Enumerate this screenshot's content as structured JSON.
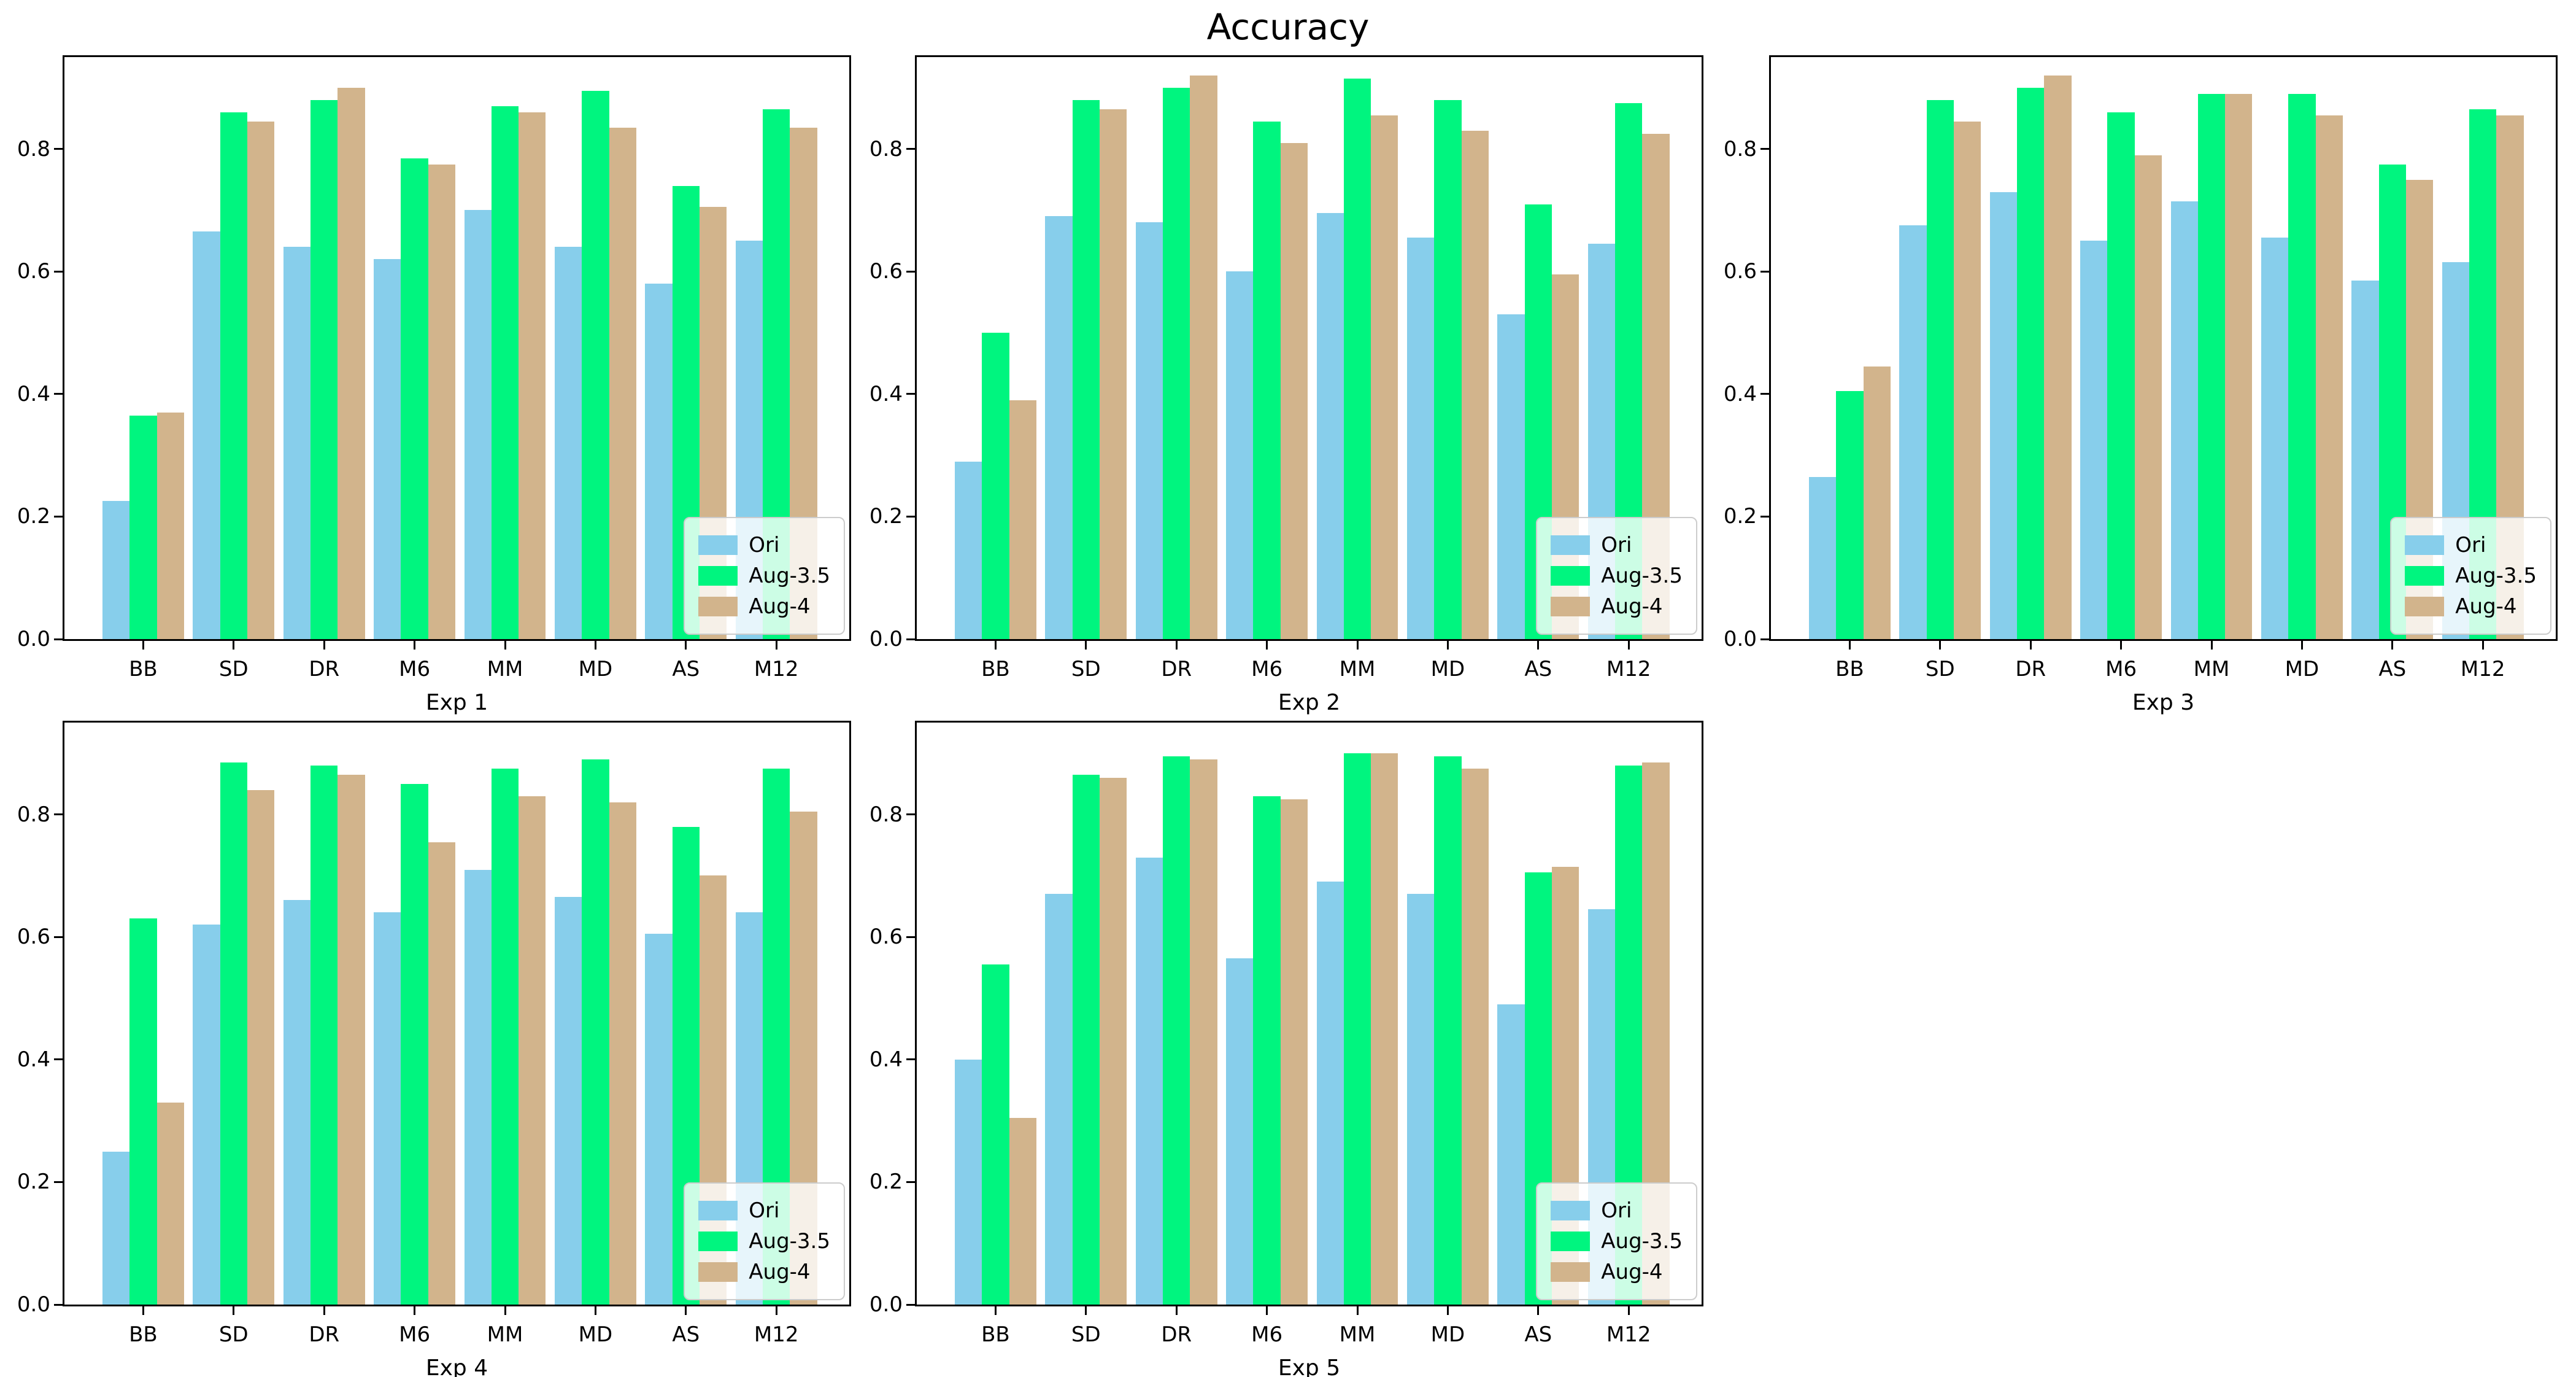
{
  "chart_data": {
    "type": "bar",
    "title": "Accuracy",
    "categories": [
      "BB",
      "SD",
      "DR",
      "M6",
      "MM",
      "MD",
      "AS",
      "M12"
    ],
    "ylim": [
      0,
      0.95
    ],
    "yticks": {
      "values": [
        0.0,
        0.2,
        0.4,
        0.6,
        0.8
      ],
      "labels": [
        "0.0",
        "0.2",
        "0.4",
        "0.6",
        "0.8"
      ]
    },
    "grid": false,
    "legend_position": "lower right",
    "colors": {
      "ori": "#87CEEB",
      "aug35": "#00F57F",
      "aug4": "#D2B48C"
    },
    "subplots": [
      {
        "xlabel": "Exp 1",
        "series": [
          {
            "name": "Ori",
            "color": "#87CEEB",
            "values": [
              0.225,
              0.665,
              0.64,
              0.62,
              0.7,
              0.64,
              0.58,
              0.65
            ]
          },
          {
            "name": "Aug-3.5",
            "color": "#00F57F",
            "values": [
              0.365,
              0.86,
              0.88,
              0.785,
              0.87,
              0.895,
              0.74,
              0.865
            ]
          },
          {
            "name": "Aug-4",
            "color": "#D2B48C",
            "values": [
              0.37,
              0.845,
              0.9,
              0.775,
              0.86,
              0.835,
              0.705,
              0.835
            ]
          }
        ]
      },
      {
        "xlabel": "Exp 2",
        "series": [
          {
            "name": "Ori",
            "color": "#87CEEB",
            "values": [
              0.29,
              0.69,
              0.68,
              0.6,
              0.695,
              0.655,
              0.53,
              0.645
            ]
          },
          {
            "name": "Aug-3.5",
            "color": "#00F57F",
            "values": [
              0.5,
              0.88,
              0.9,
              0.845,
              0.915,
              0.88,
              0.71,
              0.875
            ]
          },
          {
            "name": "Aug-4",
            "color": "#D2B48C",
            "values": [
              0.39,
              0.865,
              0.92,
              0.81,
              0.855,
              0.83,
              0.595,
              0.825
            ]
          }
        ]
      },
      {
        "xlabel": "Exp 3",
        "series": [
          {
            "name": "Ori",
            "color": "#87CEEB",
            "values": [
              0.265,
              0.675,
              0.73,
              0.65,
              0.715,
              0.655,
              0.585,
              0.615
            ]
          },
          {
            "name": "Aug-3.5",
            "color": "#00F57F",
            "values": [
              0.405,
              0.88,
              0.9,
              0.86,
              0.89,
              0.89,
              0.775,
              0.865
            ]
          },
          {
            "name": "Aug-4",
            "color": "#D2B48C",
            "values": [
              0.445,
              0.845,
              0.92,
              0.79,
              0.89,
              0.855,
              0.75,
              0.855
            ]
          }
        ]
      },
      {
        "xlabel": "Exp 4",
        "series": [
          {
            "name": "Ori",
            "color": "#87CEEB",
            "values": [
              0.25,
              0.62,
              0.66,
              0.64,
              0.71,
              0.665,
              0.605,
              0.64
            ]
          },
          {
            "name": "Aug-3.5",
            "color": "#00F57F",
            "values": [
              0.63,
              0.885,
              0.88,
              0.85,
              0.875,
              0.89,
              0.78,
              0.875
            ]
          },
          {
            "name": "Aug-4",
            "color": "#D2B48C",
            "values": [
              0.33,
              0.84,
              0.865,
              0.755,
              0.83,
              0.82,
              0.7,
              0.805
            ]
          }
        ]
      },
      {
        "xlabel": "Exp 5",
        "series": [
          {
            "name": "Ori",
            "color": "#87CEEB",
            "values": [
              0.4,
              0.67,
              0.73,
              0.565,
              0.69,
              0.67,
              0.49,
              0.645
            ]
          },
          {
            "name": "Aug-3.5",
            "color": "#00F57F",
            "values": [
              0.555,
              0.865,
              0.895,
              0.83,
              0.9,
              0.895,
              0.705,
              0.88
            ]
          },
          {
            "name": "Aug-4",
            "color": "#D2B48C",
            "values": [
              0.305,
              0.86,
              0.89,
              0.825,
              0.9,
              0.875,
              0.715,
              0.885
            ]
          }
        ]
      }
    ]
  }
}
